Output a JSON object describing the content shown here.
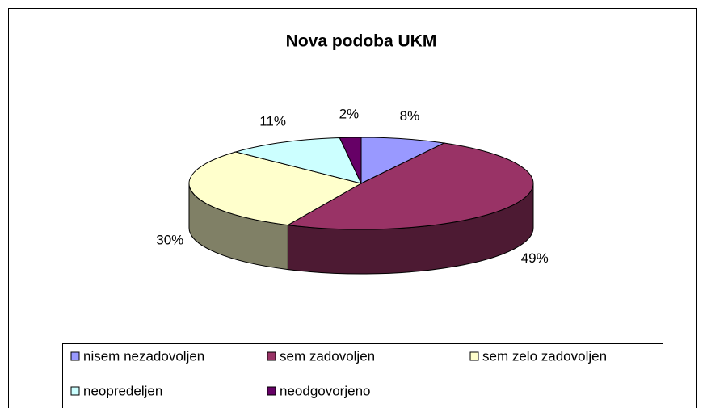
{
  "chart_data": {
    "type": "pie3d",
    "title": "Nova podoba UKM",
    "categories": [
      "nisem nezadovoljen",
      "sem zadovoljen",
      "sem zelo zadovoljen",
      "neopredeljen",
      "neodgovorjeno"
    ],
    "values": [
      8,
      49,
      30,
      11,
      2
    ],
    "value_labels": [
      "8%",
      "49%",
      "30%",
      "11%",
      "2%"
    ],
    "colors": [
      "#9999ff",
      "#993366",
      "#ffffcc",
      "#ccffff",
      "#660066"
    ]
  }
}
